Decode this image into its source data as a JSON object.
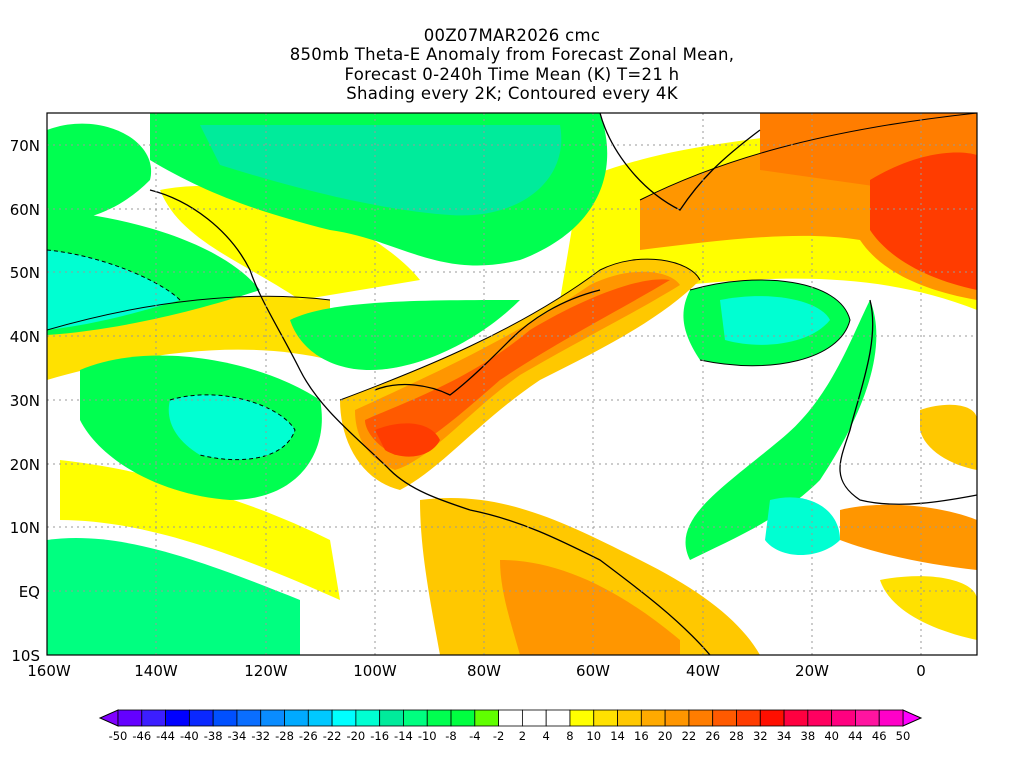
{
  "title": {
    "line1": "00Z07MAR2026 cmc",
    "line2": "850mb Theta-E Anomaly from Forecast Zonal Mean,",
    "line3": "Forecast 0-240h Time Mean (K) T=21 h",
    "line4": "Shading every 2K; Contoured every 4K"
  },
  "map": {
    "lon_labels": [
      "160W",
      "140W",
      "120W",
      "100W",
      "80W",
      "60W",
      "40W",
      "20W",
      "0"
    ],
    "lat_labels": [
      "70N",
      "60N",
      "50N",
      "40N",
      "30N",
      "20N",
      "10N",
      "EQ",
      "10S"
    ],
    "lon_range": [
      -160,
      10
    ],
    "lat_range": [
      -10,
      75
    ]
  },
  "colorbar": {
    "labels": [
      "-50",
      "-46",
      "-44",
      "-40",
      "-38",
      "-34",
      "-32",
      "-28",
      "-26",
      "-22",
      "-20",
      "-16",
      "-14",
      "-10",
      "-8",
      "-4",
      "-2",
      "2",
      "4",
      "8",
      "10",
      "14",
      "16",
      "20",
      "22",
      "26",
      "28",
      "32",
      "34",
      "38",
      "40",
      "44",
      "46",
      "50"
    ],
    "colors": [
      "#8000ff",
      "#6400ff",
      "#3c1eff",
      "#0000ff",
      "#0a28ff",
      "#0050ff",
      "#0a6eff",
      "#0a8cff",
      "#00aaff",
      "#00c8ff",
      "#00ffff",
      "#00ffd2",
      "#00eb9b",
      "#00ff80",
      "#00ff50",
      "#00ff40",
      "#60ff00",
      "#ffffff",
      "#ffffff",
      "#ffffff",
      "#ffff00",
      "#ffe100",
      "#ffc800",
      "#ffaa00",
      "#ff9600",
      "#ff7d00",
      "#ff5a00",
      "#ff3c00",
      "#ff0f00",
      "#ff0040",
      "#ff0060",
      "#ff0080",
      "#ff14a0",
      "#ff00c8",
      "#ff00ff"
    ],
    "low_color": "#8000ff",
    "high_color": "#ff00ff"
  }
}
